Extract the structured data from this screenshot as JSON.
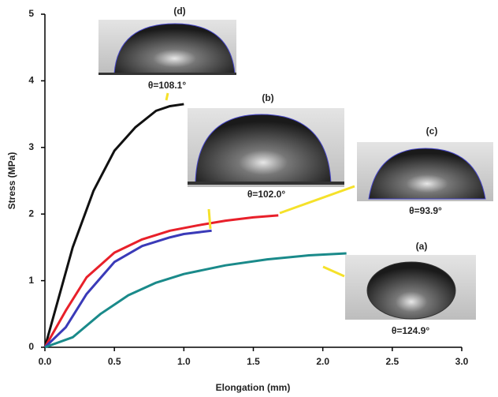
{
  "chart_data": {
    "type": "line",
    "x_label": "Elongation (mm)",
    "y_label": "Stress (MPa)",
    "xlim": [
      0,
      3.0
    ],
    "ylim": [
      0,
      5
    ],
    "xticks": [
      {
        "value": 0,
        "label": "0.0"
      },
      {
        "value": 0.5,
        "label": "0.5"
      },
      {
        "value": 1.0,
        "label": "1.0"
      },
      {
        "value": 1.5,
        "label": "1.5"
      },
      {
        "value": 2.0,
        "label": "2.0"
      },
      {
        "value": 2.5,
        "label": "2.5"
      },
      {
        "value": 3.0,
        "label": "3.0"
      }
    ],
    "yticks": [
      0,
      1,
      2,
      3,
      4,
      5
    ],
    "series": [
      {
        "color": "#111111",
        "x": [
          0,
          0.1,
          0.2,
          0.35,
          0.5,
          0.65,
          0.8,
          0.9,
          1.0
        ],
        "values": [
          0,
          0.75,
          1.5,
          2.35,
          2.95,
          3.3,
          3.55,
          3.62,
          3.65
        ]
      },
      {
        "color": "#e8202a",
        "x": [
          0,
          0.15,
          0.3,
          0.5,
          0.7,
          0.9,
          1.1,
          1.3,
          1.5,
          1.68
        ],
        "values": [
          0,
          0.55,
          1.05,
          1.42,
          1.62,
          1.75,
          1.83,
          1.9,
          1.95,
          1.98
        ]
      },
      {
        "color": "#3a3ab8",
        "x": [
          0,
          0.15,
          0.3,
          0.5,
          0.7,
          0.9,
          1.0,
          1.2
        ],
        "values": [
          0,
          0.3,
          0.8,
          1.28,
          1.52,
          1.65,
          1.7,
          1.75
        ]
      },
      {
        "color": "#1a8a8a",
        "x": [
          0,
          0.2,
          0.4,
          0.6,
          0.8,
          1.0,
          1.3,
          1.6,
          1.9,
          2.17
        ],
        "values": [
          0,
          0.15,
          0.5,
          0.78,
          0.97,
          1.1,
          1.23,
          1.32,
          1.38,
          1.41
        ]
      }
    ],
    "annotations": [
      {
        "label": "(d)",
        "angle": "θ=108.1°"
      },
      {
        "label": "(b)",
        "angle": "θ=102.0°"
      },
      {
        "label": "(c)",
        "angle": "θ=93.9°"
      },
      {
        "label": "(a)",
        "angle": "θ=124.9°"
      }
    ]
  }
}
